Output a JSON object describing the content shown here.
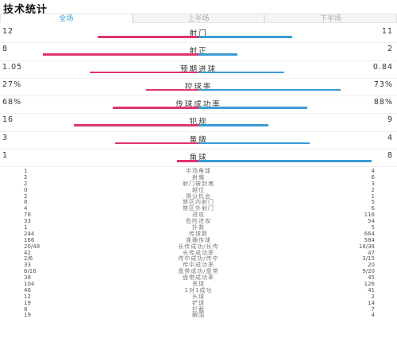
{
  "header": {
    "title": "技术统计"
  },
  "tabs": [
    "全场",
    "上半场",
    "下半场"
  ],
  "bar_stats": [
    {
      "label": "射门",
      "left": "12",
      "right": "11",
      "left_share": 0.52,
      "right_share": 0.48
    },
    {
      "label": "射正",
      "left": "8",
      "right": "2",
      "left_share": 0.8,
      "right_share": 0.2
    },
    {
      "label": "预期进球",
      "left": "1.05",
      "right": "0.84",
      "left_share": 0.56,
      "right_share": 0.44
    },
    {
      "label": "控球率",
      "left": "27%",
      "right": "73%",
      "left_share": 0.27,
      "right_share": 0.73
    },
    {
      "label": "传球成功率",
      "left": "68%",
      "right": "88%",
      "left_share": 0.44,
      "right_share": 0.56
    },
    {
      "label": "犯规",
      "left": "16",
      "right": "9",
      "left_share": 0.64,
      "right_share": 0.36
    },
    {
      "label": "黄牌",
      "left": "3",
      "right": "4",
      "left_share": 0.43,
      "right_share": 0.57
    },
    {
      "label": "角球",
      "left": "1",
      "right": "8",
      "left_share": 0.11,
      "right_share": 0.89
    }
  ],
  "list_stats": [
    {
      "label": "半场角球",
      "left": "1",
      "right": "4"
    },
    {
      "label": "射偏",
      "left": "2",
      "right": "6"
    },
    {
      "label": "射门被封堵",
      "left": "2",
      "right": "3"
    },
    {
      "label": "越位",
      "left": "0",
      "right": "2"
    },
    {
      "label": "得分机会",
      "left": "2",
      "right": "1"
    },
    {
      "label": "禁区内射门",
      "left": "8",
      "right": "5"
    },
    {
      "label": "禁区外射门",
      "left": "4",
      "right": "6"
    },
    {
      "label": "进攻",
      "left": "78",
      "right": "116"
    },
    {
      "label": "危险进攻",
      "left": "33",
      "right": "54"
    },
    {
      "label": "扑救",
      "left": "1",
      "right": "5"
    },
    {
      "label": "传球数",
      "left": "244",
      "right": "664"
    },
    {
      "label": "准确传球",
      "left": "166",
      "right": "584"
    },
    {
      "label": "长传成功/长传",
      "left": "20/48",
      "right": "18/38"
    },
    {
      "label": "长传成功率",
      "left": "42",
      "right": "47"
    },
    {
      "label": "传中成功/传中",
      "left": "2/6",
      "right": "3/15"
    },
    {
      "label": "传中成功率",
      "left": "33",
      "right": "20"
    },
    {
      "label": "盘带成功/盘带",
      "left": "6/16",
      "right": "9/20"
    },
    {
      "label": "盘带成功率",
      "left": "38",
      "right": "45"
    },
    {
      "label": "丢球",
      "left": "104",
      "right": "126"
    },
    {
      "label": "1对1成功",
      "left": "46",
      "right": "41"
    },
    {
      "label": "头球",
      "left": "12",
      "right": "2"
    },
    {
      "label": "铲球",
      "left": "19",
      "right": "14"
    },
    {
      "label": "拦截",
      "left": "8",
      "right": "7"
    },
    {
      "label": "解围",
      "left": "19",
      "right": "4"
    }
  ],
  "colors": {
    "left_team": "#e0336c",
    "right_team": "#3a9bd5",
    "active_tab": "#3a9bd5"
  }
}
